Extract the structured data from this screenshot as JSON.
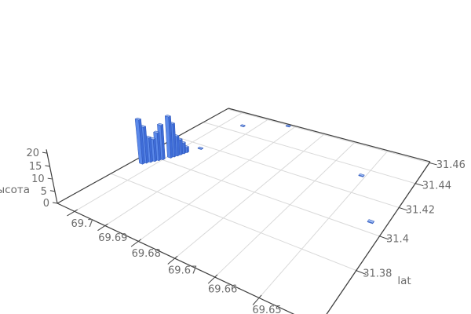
{
  "chart_data": {
    "type": "bar",
    "subtype": "bar3d",
    "title": "",
    "xlabel": "",
    "ylabel": "lat",
    "zlabel": "высота",
    "grid": true,
    "x_axis": {
      "tick_labels": [
        "69.7",
        "69.69",
        "69.68",
        "69.67",
        "69.66",
        "69.65"
      ],
      "tick_values": [
        69.7,
        69.69,
        69.68,
        69.67,
        69.66,
        69.65
      ]
    },
    "y_axis": {
      "tick_labels": [
        "31.38",
        "31.4",
        "31.42",
        "31.44",
        "31.46"
      ],
      "tick_values": [
        31.38,
        31.4,
        31.42,
        31.44,
        31.46
      ]
    },
    "z_axis": {
      "tick_labels": [
        "0",
        "5",
        "10",
        "15",
        "20"
      ],
      "tick_values": [
        0,
        5,
        10,
        15,
        20
      ],
      "zlim": [
        0,
        20
      ]
    },
    "bars": [
      {
        "lon": 69.7033,
        "lat": 31.3932,
        "h": 19.5
      },
      {
        "lon": 69.7028,
        "lat": 31.3947,
        "h": 16
      },
      {
        "lon": 69.7022,
        "lat": 31.3962,
        "h": 11
      },
      {
        "lon": 69.7016,
        "lat": 31.3977,
        "h": 10
      },
      {
        "lon": 69.701,
        "lat": 31.3992,
        "h": 12.5
      },
      {
        "lon": 69.7004,
        "lat": 31.4007,
        "h": 15.5
      },
      {
        "lon": 69.6993,
        "lat": 31.4037,
        "h": 18.5
      },
      {
        "lon": 69.6989,
        "lat": 31.4052,
        "h": 15
      },
      {
        "lon": 69.6985,
        "lat": 31.4067,
        "h": 9
      },
      {
        "lon": 69.6982,
        "lat": 31.4082,
        "h": 7
      },
      {
        "lon": 69.6979,
        "lat": 31.4097,
        "h": 5
      },
      {
        "lon": 69.6976,
        "lat": 31.4112,
        "h": 2.5
      },
      {
        "lon": 69.6955,
        "lat": 31.417,
        "h": 0.3
      },
      {
        "lon": 69.694,
        "lat": 31.447,
        "h": 0.3
      },
      {
        "lon": 69.682,
        "lat": 31.459,
        "h": 0.3
      },
      {
        "lon": 69.651,
        "lat": 31.434,
        "h": 0.3
      },
      {
        "lon": 69.6415,
        "lat": 31.406,
        "h": 0.3
      }
    ],
    "colors": {
      "bar_front": "#5b89ea",
      "bar_side": "#3e6cd8",
      "bar_top": "#9cbaf4",
      "bar_edge": "#2e56b8",
      "grid_line": "#d9d9d9",
      "axis_line": "#3f3f3f",
      "tick_text": "#6b6b6b"
    }
  }
}
